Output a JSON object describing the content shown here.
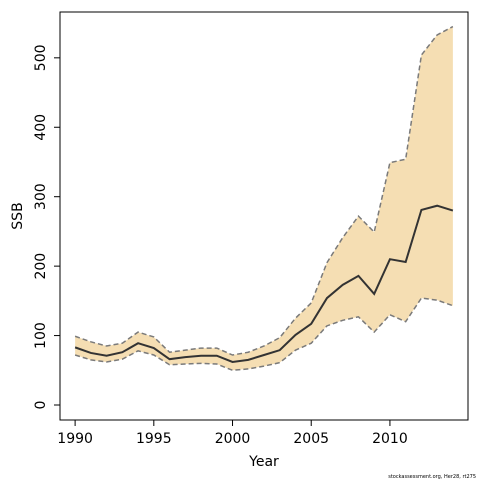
{
  "chart_data": {
    "type": "line",
    "x_label": "Year",
    "y_label": "SSB",
    "footnote": "stockassessment.org, Her28, rt275",
    "x": [
      1990,
      1991,
      1992,
      1993,
      1994,
      1995,
      1996,
      1997,
      1998,
      1999,
      2000,
      2001,
      2002,
      2003,
      2004,
      2005,
      2006,
      2007,
      2008,
      2009,
      2010,
      2011,
      2012,
      2013,
      2014
    ],
    "values": [
      83,
      75,
      71,
      76,
      89,
      82,
      66,
      69,
      71,
      71,
      62,
      65,
      72,
      79,
      101,
      117,
      154,
      173,
      186,
      160,
      210,
      206,
      281,
      287,
      280
    ],
    "upper": [
      99,
      91,
      85,
      89,
      105,
      98,
      76,
      79,
      82,
      82,
      72,
      76,
      85,
      97,
      125,
      147,
      205,
      241,
      272,
      249,
      349,
      354,
      504,
      533,
      545
    ],
    "lower": [
      72,
      65,
      62,
      66,
      78,
      72,
      58,
      59,
      60,
      59,
      50,
      52,
      56,
      61,
      79,
      89,
      114,
      122,
      127,
      105,
      130,
      120,
      154,
      151,
      143
    ],
    "color": "#333333",
    "band_color": "#f5deb3",
    "band_edge_color": "#7a7a7a",
    "xlim": [
      1989.04,
      2014.96
    ],
    "ylim": [
      -21.6,
      566
    ],
    "xticks": [
      1990,
      1995,
      2000,
      2005,
      2010
    ],
    "yticks": [
      0,
      100,
      200,
      300,
      400,
      500
    ]
  }
}
